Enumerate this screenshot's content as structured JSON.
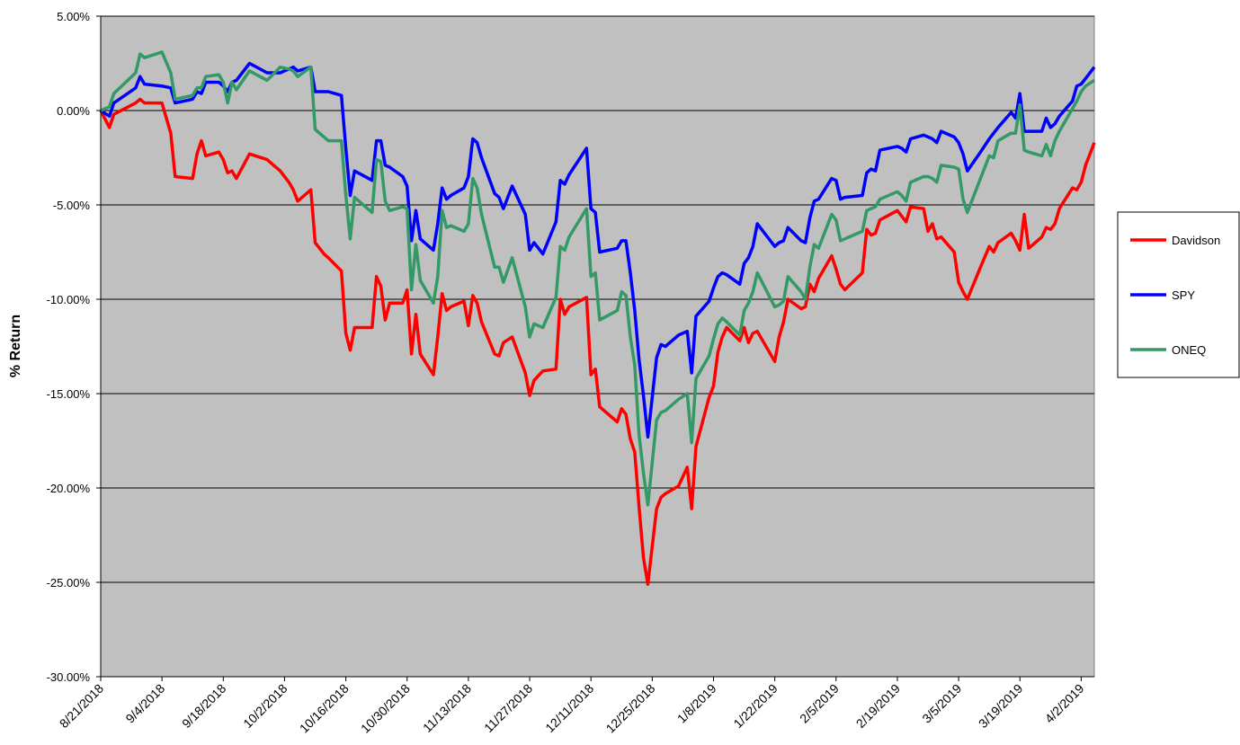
{
  "chart_data": {
    "type": "line",
    "y_label": "% Return",
    "ylim": [
      -30,
      5
    ],
    "yticks": [
      {
        "value": 5,
        "label": "5.00%"
      },
      {
        "value": 0,
        "label": "0.00%"
      },
      {
        "value": -5,
        "label": "-5.00%"
      },
      {
        "value": -10,
        "label": "-10.00%"
      },
      {
        "value": -15,
        "label": "-15.00%"
      },
      {
        "value": -20,
        "label": "-20.00%"
      },
      {
        "value": -25,
        "label": "-25.00%"
      },
      {
        "value": -30,
        "label": "-30.00%"
      }
    ],
    "xlim": [
      "8/21/2018",
      "4/5/2019"
    ],
    "xticks": [
      "8/21/2018",
      "9/4/2018",
      "9/18/2018",
      "10/2/2018",
      "10/16/2018",
      "10/30/2018",
      "11/13/2018",
      "11/27/2018",
      "12/11/2018",
      "12/25/2018",
      "1/8/2019",
      "1/22/2019",
      "2/5/2019",
      "2/19/2019",
      "3/5/2019",
      "3/19/2019",
      "4/2/2019"
    ],
    "grid": true,
    "plot_background": "#c0c0c0",
    "legend_position": "right",
    "x": [
      "8/21/2018",
      "8/23/2018",
      "8/24/2018",
      "8/29/2018",
      "8/30/2018",
      "8/31/2018",
      "9/4/2018",
      "9/6/2018",
      "9/7/2018",
      "9/11/2018",
      "9/12/2018",
      "9/13/2018",
      "9/14/2018",
      "9/17/2018",
      "9/18/2018",
      "9/19/2018",
      "9/20/2018",
      "9/21/2018",
      "9/24/2018",
      "9/28/2018",
      "10/1/2018",
      "10/3/2018",
      "10/4/2018",
      "10/5/2018",
      "10/8/2018",
      "10/9/2018",
      "10/11/2018",
      "10/12/2018",
      "10/15/2018",
      "10/16/2018",
      "10/17/2018",
      "10/18/2018",
      "10/22/2018",
      "10/23/2018",
      "10/24/2018",
      "10/25/2018",
      "10/26/2018",
      "10/29/2018",
      "10/30/2018",
      "10/31/2018",
      "11/1/2018",
      "11/2/2018",
      "11/5/2018",
      "11/6/2018",
      "11/7/2018",
      "11/8/2018",
      "11/9/2018",
      "11/12/2018",
      "11/13/2018",
      "11/14/2018",
      "11/15/2018",
      "11/16/2018",
      "11/19/2018",
      "11/20/2018",
      "11/21/2018",
      "11/23/2018",
      "11/26/2018",
      "11/27/2018",
      "11/28/2018",
      "11/30/2018",
      "12/3/2018",
      "12/4/2018",
      "12/5/2018",
      "12/6/2018",
      "12/10/2018",
      "12/11/2018",
      "12/12/2018",
      "12/13/2018",
      "12/17/2018",
      "12/18/2018",
      "12/19/2018",
      "12/20/2018",
      "12/21/2018",
      "12/22/2018",
      "12/23/2018",
      "12/24/2018",
      "12/26/2018",
      "12/27/2018",
      "12/28/2018",
      "12/31/2018",
      "1/2/2019",
      "1/3/2019",
      "1/4/2019",
      "1/7/2019",
      "1/8/2019",
      "1/9/2019",
      "1/10/2019",
      "1/11/2019",
      "1/14/2019",
      "1/15/2019",
      "1/16/2019",
      "1/17/2019",
      "1/18/2019",
      "1/22/2019",
      "1/23/2019",
      "1/24/2019",
      "1/25/2019",
      "1/28/2019",
      "1/29/2019",
      "1/30/2019",
      "1/31/2019",
      "2/1/2019",
      "2/4/2019",
      "2/5/2019",
      "2/6/2019",
      "2/7/2019",
      "2/11/2019",
      "2/12/2019",
      "2/13/2019",
      "2/14/2019",
      "2/15/2019",
      "2/19/2019",
      "2/20/2019",
      "2/21/2019",
      "2/22/2019",
      "2/25/2019",
      "2/26/2019",
      "2/27/2019",
      "2/28/2019",
      "3/1/2019",
      "3/4/2019",
      "3/5/2019",
      "3/6/2019",
      "3/7/2019",
      "3/10/2019",
      "3/12/2019",
      "3/13/2019",
      "3/14/2019",
      "3/17/2019",
      "3/18/2019",
      "3/19/2019",
      "3/20/2019",
      "3/21/2019",
      "3/24/2019",
      "3/25/2019",
      "3/26/2019",
      "3/27/2019",
      "3/28/2019",
      "3/31/2019",
      "4/1/2019",
      "4/2/2019",
      "4/3/2019",
      "4/5/2019"
    ],
    "series": [
      {
        "name": "Davidson",
        "color": "#ff0000",
        "values": [
          0,
          -0.9,
          -0.2,
          0.4,
          0.6,
          0.4,
          0.4,
          -1.2,
          -3.5,
          -3.6,
          -2.3,
          -1.6,
          -2.4,
          -2.2,
          -2.6,
          -3.3,
          -3.2,
          -3.6,
          -2.3,
          -2.6,
          -3.2,
          -3.8,
          -4.2,
          -4.8,
          -4.2,
          -7.0,
          -7.6,
          -7.8,
          -8.5,
          -11.8,
          -12.7,
          -11.5,
          -11.5,
          -8.8,
          -9.3,
          -11.1,
          -10.2,
          -10.2,
          -9.5,
          -12.9,
          -10.8,
          -12.9,
          -14.0,
          -12.0,
          -9.7,
          -10.6,
          -10.4,
          -10.1,
          -11.4,
          -9.8,
          -10.2,
          -11.2,
          -12.9,
          -13.0,
          -12.3,
          -12.0,
          -13.9,
          -15.1,
          -14.3,
          -13.8,
          -13.7,
          -10.0,
          -10.8,
          -10.4,
          -9.9,
          -14.0,
          -13.7,
          -15.7,
          -16.5,
          -15.8,
          -16.1,
          -17.4,
          -18.1,
          -21.0,
          -23.7,
          -25.1,
          -21.1,
          -20.5,
          -20.3,
          -19.9,
          -18.9,
          -21.1,
          -17.8,
          -15.2,
          -14.6,
          -12.8,
          -12.0,
          -11.5,
          -12.2,
          -11.5,
          -12.3,
          -11.8,
          -11.7,
          -13.3,
          -12.0,
          -11.2,
          -10.0,
          -10.5,
          -10.4,
          -9.2,
          -9.6,
          -8.9,
          -7.7,
          -8.4,
          -9.2,
          -9.5,
          -8.6,
          -6.3,
          -6.6,
          -6.5,
          -5.8,
          -5.3,
          -5.6,
          -5.9,
          -5.1,
          -5.2,
          -6.4,
          -6.0,
          -6.8,
          -6.7,
          -7.5,
          -9.1,
          -9.6,
          -10.0,
          -8.3,
          -7.2,
          -7.5,
          -7.0,
          -6.5,
          -6.9,
          -7.4,
          -5.5,
          -7.3,
          -6.7,
          -6.2,
          -6.3,
          -6.0,
          -5.2,
          -4.1,
          -4.2,
          -3.8,
          -2.9,
          -1.7
        ]
      },
      {
        "name": "SPY",
        "color": "#0000ff",
        "values": [
          0,
          -0.3,
          0.4,
          1.2,
          1.8,
          1.4,
          1.3,
          1.2,
          0.4,
          0.6,
          1.0,
          0.9,
          1.5,
          1.5,
          1.3,
          1.0,
          1.5,
          1.6,
          2.5,
          2.0,
          2.0,
          2.2,
          2.3,
          2.1,
          2.3,
          1.0,
          1.0,
          1.0,
          0.8,
          -2.0,
          -4.5,
          -3.2,
          -3.7,
          -1.6,
          -1.6,
          -2.9,
          -3.0,
          -3.5,
          -4.0,
          -6.9,
          -5.3,
          -6.8,
          -7.4,
          -6.0,
          -4.1,
          -4.7,
          -4.5,
          -4.1,
          -3.5,
          -1.5,
          -1.7,
          -2.5,
          -4.4,
          -4.6,
          -5.2,
          -4.0,
          -5.5,
          -7.4,
          -7.0,
          -7.6,
          -5.9,
          -3.7,
          -3.9,
          -3.4,
          -2.0,
          -5.2,
          -5.4,
          -7.5,
          -7.3,
          -6.9,
          -6.9,
          -8.6,
          -10.6,
          -13.2,
          -15.1,
          -17.3,
          -13.1,
          -12.4,
          -12.5,
          -11.9,
          -11.7,
          -13.9,
          -10.9,
          -10.1,
          -9.4,
          -8.8,
          -8.6,
          -8.7,
          -9.2,
          -8.1,
          -7.8,
          -7.2,
          -6.0,
          -7.2,
          -7.0,
          -6.9,
          -6.2,
          -6.9,
          -7.0,
          -5.7,
          -4.8,
          -4.7,
          -3.6,
          -3.7,
          -4.7,
          -4.6,
          -4.5,
          -3.3,
          -3.1,
          -3.2,
          -2.1,
          -1.9,
          -2.0,
          -2.2,
          -1.5,
          -1.3,
          -1.4,
          -1.5,
          -1.7,
          -1.1,
          -1.4,
          -1.7,
          -2.3,
          -3.2,
          -2.2,
          -1.5,
          -1.2,
          -0.9,
          -0.1,
          -0.4,
          0.9,
          -1.1,
          -1.1,
          -1.1,
          -0.4,
          -0.9,
          -0.7,
          -0.3,
          0.5,
          1.3,
          1.4,
          1.7,
          2.3
        ]
      },
      {
        "name": "ONEQ",
        "color": "#339966",
        "values": [
          0,
          0.2,
          0.9,
          2.0,
          3.0,
          2.8,
          3.1,
          2.0,
          0.6,
          0.8,
          1.2,
          1.2,
          1.8,
          1.9,
          1.5,
          0.4,
          1.5,
          1.1,
          2.1,
          1.6,
          2.3,
          2.2,
          2.1,
          1.8,
          2.3,
          -1.0,
          -1.4,
          -1.6,
          -1.6,
          -4.5,
          -6.8,
          -4.6,
          -5.4,
          -2.6,
          -2.7,
          -4.8,
          -5.3,
          -5.1,
          -5.2,
          -9.5,
          -7.1,
          -9.0,
          -10.2,
          -8.8,
          -5.3,
          -6.2,
          -6.1,
          -6.4,
          -6.0,
          -3.6,
          -4.1,
          -5.5,
          -8.3,
          -8.3,
          -9.1,
          -7.8,
          -10.4,
          -12.0,
          -11.3,
          -11.5,
          -9.9,
          -7.2,
          -7.4,
          -6.7,
          -5.2,
          -8.8,
          -8.6,
          -11.1,
          -10.6,
          -9.6,
          -9.8,
          -12.0,
          -13.5,
          -17.2,
          -19.2,
          -20.9,
          -16.4,
          -16.0,
          -15.9,
          -15.3,
          -15.0,
          -17.6,
          -14.2,
          -13.0,
          -12.1,
          -11.3,
          -11.0,
          -11.2,
          -11.9,
          -10.6,
          -10.2,
          -9.6,
          -8.6,
          -10.4,
          -10.3,
          -10.1,
          -8.8,
          -9.6,
          -10.0,
          -8.3,
          -7.1,
          -7.3,
          -5.5,
          -5.8,
          -6.9,
          -6.8,
          -6.4,
          -5.3,
          -5.2,
          -5.1,
          -4.7,
          -4.3,
          -4.5,
          -4.8,
          -3.8,
          -3.5,
          -3.5,
          -3.6,
          -3.8,
          -2.9,
          -3.0,
          -3.1,
          -4.7,
          -5.4,
          -3.6,
          -2.4,
          -2.5,
          -1.6,
          -1.2,
          -1.2,
          0.3,
          -2.1,
          -2.2,
          -2.4,
          -1.8,
          -2.4,
          -1.6,
          -1.1,
          0.1,
          0.5,
          1.0,
          1.3,
          1.6
        ]
      }
    ]
  }
}
